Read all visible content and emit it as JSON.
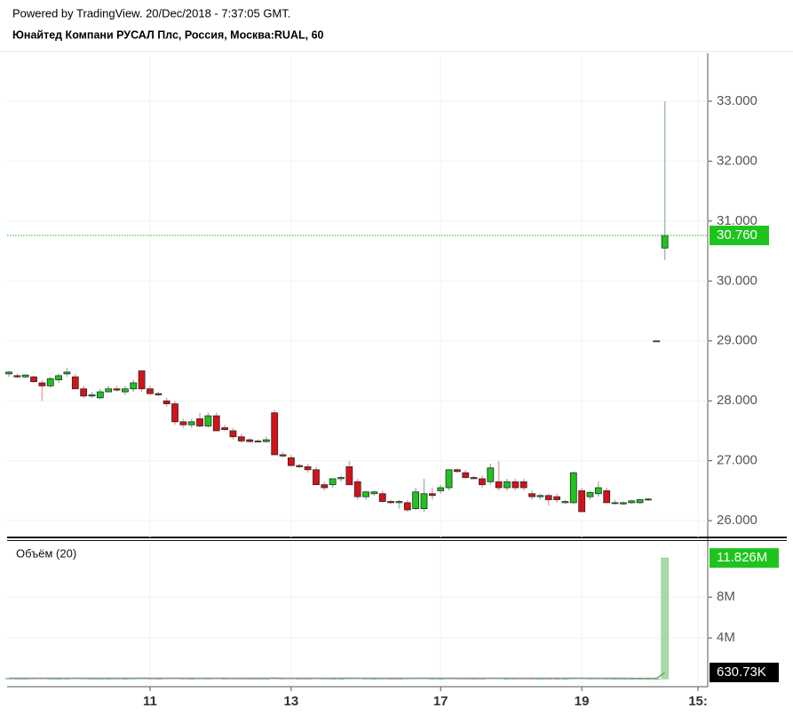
{
  "header": {
    "line1": "Powered by TradingView. 20/Dec/2018 - 7:37:05 GMT.",
    "line2": "Юнайтед Компани РУСАЛ Плс, Россия, Москва:RUAL, 60"
  },
  "chart_data": [
    {
      "type": "candlestick",
      "categories": [
        null,
        null,
        null,
        null,
        null,
        null,
        null,
        null,
        null,
        null,
        null,
        null,
        null,
        null,
        null,
        null,
        null,
        "11",
        null,
        null,
        null,
        null,
        null,
        null,
        null,
        null,
        null,
        null,
        null,
        null,
        null,
        null,
        null,
        null,
        "13",
        null,
        null,
        null,
        null,
        null,
        null,
        null,
        null,
        null,
        null,
        null,
        null,
        null,
        null,
        null,
        null,
        null,
        "17",
        null,
        null,
        null,
        null,
        null,
        null,
        null,
        null,
        null,
        null,
        null,
        null,
        null,
        null,
        null,
        null,
        "19",
        null,
        null,
        null,
        null,
        null,
        null,
        null,
        null,
        null,
        null,
        null,
        null,
        null,
        "15:"
      ],
      "open": [
        28.45,
        28.42,
        28.4,
        28.4,
        28.3,
        28.25,
        28.35,
        28.45,
        28.4,
        28.2,
        28.08,
        28.05,
        28.15,
        28.2,
        28.15,
        28.2,
        28.5,
        28.2,
        28.12,
        28.0,
        27.95,
        27.65,
        27.6,
        27.7,
        27.58,
        27.75,
        27.55,
        27.5,
        27.4,
        27.35,
        27.33,
        27.32,
        27.8,
        27.1,
        27.05,
        26.92,
        26.9,
        26.85,
        26.6,
        26.6,
        26.7,
        26.9,
        26.65,
        26.4,
        26.45,
        26.45,
        26.32,
        26.3,
        26.3,
        26.2,
        26.2,
        26.45,
        26.5,
        26.55,
        26.85,
        26.8,
        26.72,
        26.7,
        26.65,
        26.65,
        26.55,
        26.65,
        26.65,
        26.45,
        26.4,
        26.42,
        26.4,
        26.3,
        26.3,
        26.5,
        26.4,
        26.45,
        26.5,
        26.3,
        26.28,
        26.3,
        26.3,
        26.35,
        29,
        30.55,
        null,
        null,
        null,
        null
      ],
      "high": [
        28.5,
        28.45,
        28.45,
        28.42,
        28.35,
        28.4,
        28.45,
        28.55,
        28.45,
        28.25,
        28.15,
        28.2,
        28.25,
        28.25,
        28.25,
        28.35,
        28.5,
        28.25,
        28.15,
        28.05,
        28.0,
        27.7,
        27.7,
        27.8,
        27.8,
        27.8,
        27.6,
        27.55,
        27.45,
        27.38,
        27.36,
        27.4,
        27.85,
        27.15,
        27.1,
        26.95,
        26.95,
        26.9,
        26.65,
        26.7,
        26.75,
        27.0,
        26.7,
        26.5,
        26.5,
        26.5,
        26.35,
        26.35,
        26.35,
        26.55,
        26.7,
        26.55,
        26.6,
        26.85,
        26.87,
        26.85,
        26.75,
        26.75,
        26.95,
        27.0,
        26.7,
        26.7,
        26.7,
        26.5,
        26.45,
        26.45,
        26.45,
        26.35,
        26.82,
        26.55,
        26.5,
        26.65,
        26.55,
        26.35,
        26.32,
        26.35,
        26.37,
        26.38,
        29,
        33,
        null,
        null,
        null,
        null
      ],
      "low": [
        28.4,
        28.38,
        28.38,
        28.3,
        28.0,
        28.22,
        28.3,
        28.4,
        28.2,
        28.05,
        28.05,
        28.03,
        28.15,
        28.15,
        28.1,
        28.15,
        28.15,
        28.1,
        28.08,
        27.9,
        27.6,
        27.55,
        27.55,
        27.55,
        27.55,
        27.5,
        27.5,
        27.35,
        27.3,
        27.3,
        27.3,
        27.3,
        27.1,
        27.05,
        26.9,
        26.88,
        26.8,
        26.6,
        26.5,
        26.55,
        26.65,
        26.6,
        26.35,
        26.35,
        26.42,
        26.3,
        26.28,
        26.2,
        26.15,
        26.18,
        26.15,
        26.35,
        26.45,
        26.5,
        26.8,
        26.7,
        26.7,
        26.55,
        26.6,
        26.5,
        26.5,
        26.5,
        26.5,
        26.35,
        26.35,
        26.25,
        26.3,
        26.28,
        26.28,
        26.15,
        26.35,
        26.4,
        26.3,
        26.27,
        26.26,
        26.28,
        26.28,
        26.33,
        29,
        30.35,
        null,
        null,
        null,
        null
      ],
      "close": [
        28.48,
        28.4,
        28.43,
        28.32,
        28.25,
        28.37,
        28.42,
        28.48,
        28.2,
        28.08,
        28.1,
        28.15,
        28.2,
        28.18,
        28.2,
        28.3,
        28.2,
        28.12,
        28.1,
        27.95,
        27.65,
        27.6,
        27.65,
        27.58,
        27.75,
        27.5,
        27.52,
        27.4,
        27.33,
        27.32,
        27.32,
        27.35,
        27.1,
        27.08,
        26.92,
        26.9,
        26.85,
        26.6,
        26.55,
        26.7,
        26.72,
        26.6,
        26.4,
        26.48,
        26.48,
        26.32,
        26.3,
        26.32,
        26.18,
        26.48,
        26.45,
        26.42,
        26.55,
        26.85,
        26.82,
        26.72,
        26.7,
        26.6,
        26.88,
        26.55,
        26.65,
        26.55,
        26.55,
        26.4,
        26.42,
        26.35,
        26.35,
        26.32,
        26.8,
        26.15,
        26.47,
        26.55,
        26.3,
        26.3,
        26.3,
        26.33,
        26.35,
        26.36,
        29,
        30.76,
        null,
        null,
        null,
        null
      ],
      "up_color": "#1ec41e",
      "down_color": "#d41218",
      "up_wick": "#9fbcb4",
      "down_wick": "#f2a4a8",
      "border_color": "#2a2a2a",
      "ylim": [
        25.72,
        33.8
      ],
      "yticks": [
        {
          "value": 26,
          "label": "26.000"
        },
        {
          "value": 27,
          "label": "27.000"
        },
        {
          "value": 28,
          "label": "28.000"
        },
        {
          "value": 29,
          "label": "29.000"
        },
        {
          "value": 30,
          "label": "30.000"
        },
        {
          "value": 31,
          "label": "31.000"
        },
        {
          "value": 32,
          "label": "32.000"
        },
        {
          "value": 33,
          "label": "33.000"
        }
      ],
      "last_price": {
        "value": 30.76,
        "label": "30.760",
        "color": "#1ec41e"
      },
      "grid": true
    },
    {
      "type": "volume",
      "title": "Объём (20)",
      "values": [
        0.06,
        0.04,
        0.05,
        0.07,
        0.08,
        0.05,
        0.04,
        0.06,
        0.09,
        0.07,
        0.05,
        0.04,
        0.05,
        0.06,
        0.05,
        0.07,
        0.12,
        0.06,
        0.04,
        0.08,
        0.1,
        0.06,
        0.05,
        0.07,
        0.06,
        0.08,
        0.05,
        0.06,
        0.05,
        0.04,
        0.04,
        0.05,
        0.14,
        0.06,
        0.07,
        0.05,
        0.05,
        0.08,
        0.06,
        0.05,
        0.04,
        0.12,
        0.09,
        0.06,
        0.05,
        0.06,
        0.04,
        0.05,
        0.07,
        0.09,
        0.1,
        0.05,
        0.05,
        0.08,
        0.06,
        0.05,
        0.04,
        0.05,
        0.09,
        0.08,
        0.05,
        0.05,
        0.06,
        0.05,
        0.04,
        0.05,
        0.04,
        0.03,
        0.1,
        0.09,
        0.06,
        0.07,
        0.05,
        0.04,
        0.03,
        0.04,
        0.04,
        0.03,
        0.02,
        11.826,
        null,
        null,
        null,
        null
      ],
      "ma": [
        0.07,
        0.07,
        0.07,
        0.07,
        0.07,
        0.07,
        0.07,
        0.07,
        0.07,
        0.07,
        0.07,
        0.07,
        0.07,
        0.07,
        0.07,
        0.07,
        0.07,
        0.07,
        0.07,
        0.07,
        0.07,
        0.07,
        0.07,
        0.07,
        0.07,
        0.07,
        0.07,
        0.07,
        0.07,
        0.07,
        0.07,
        0.07,
        0.07,
        0.07,
        0.07,
        0.07,
        0.07,
        0.07,
        0.07,
        0.07,
        0.07,
        0.07,
        0.07,
        0.07,
        0.07,
        0.07,
        0.07,
        0.07,
        0.07,
        0.07,
        0.07,
        0.07,
        0.07,
        0.07,
        0.07,
        0.07,
        0.07,
        0.07,
        0.07,
        0.07,
        0.07,
        0.06,
        0.06,
        0.06,
        0.06,
        0.06,
        0.06,
        0.06,
        0.06,
        0.06,
        0.06,
        0.06,
        0.06,
        0.06,
        0.06,
        0.05,
        0.05,
        0.05,
        0.05,
        0.63073,
        null,
        null,
        null,
        null
      ],
      "up_color": "#a6dba6",
      "down_color": "#f0b6b6",
      "ma_color": "#7a9a8a",
      "ylim": [
        -0.5,
        13.4
      ],
      "yticks": [
        {
          "value": 4,
          "label": "4M"
        },
        {
          "value": 8,
          "label": "8M"
        }
      ],
      "last_volume": {
        "value": 11.826,
        "label": "11.826M",
        "color": "#1ec41e"
      },
      "last_ma": {
        "value": 0.63073,
        "label": "630.73K",
        "color": "#000000"
      },
      "grid": true
    }
  ]
}
